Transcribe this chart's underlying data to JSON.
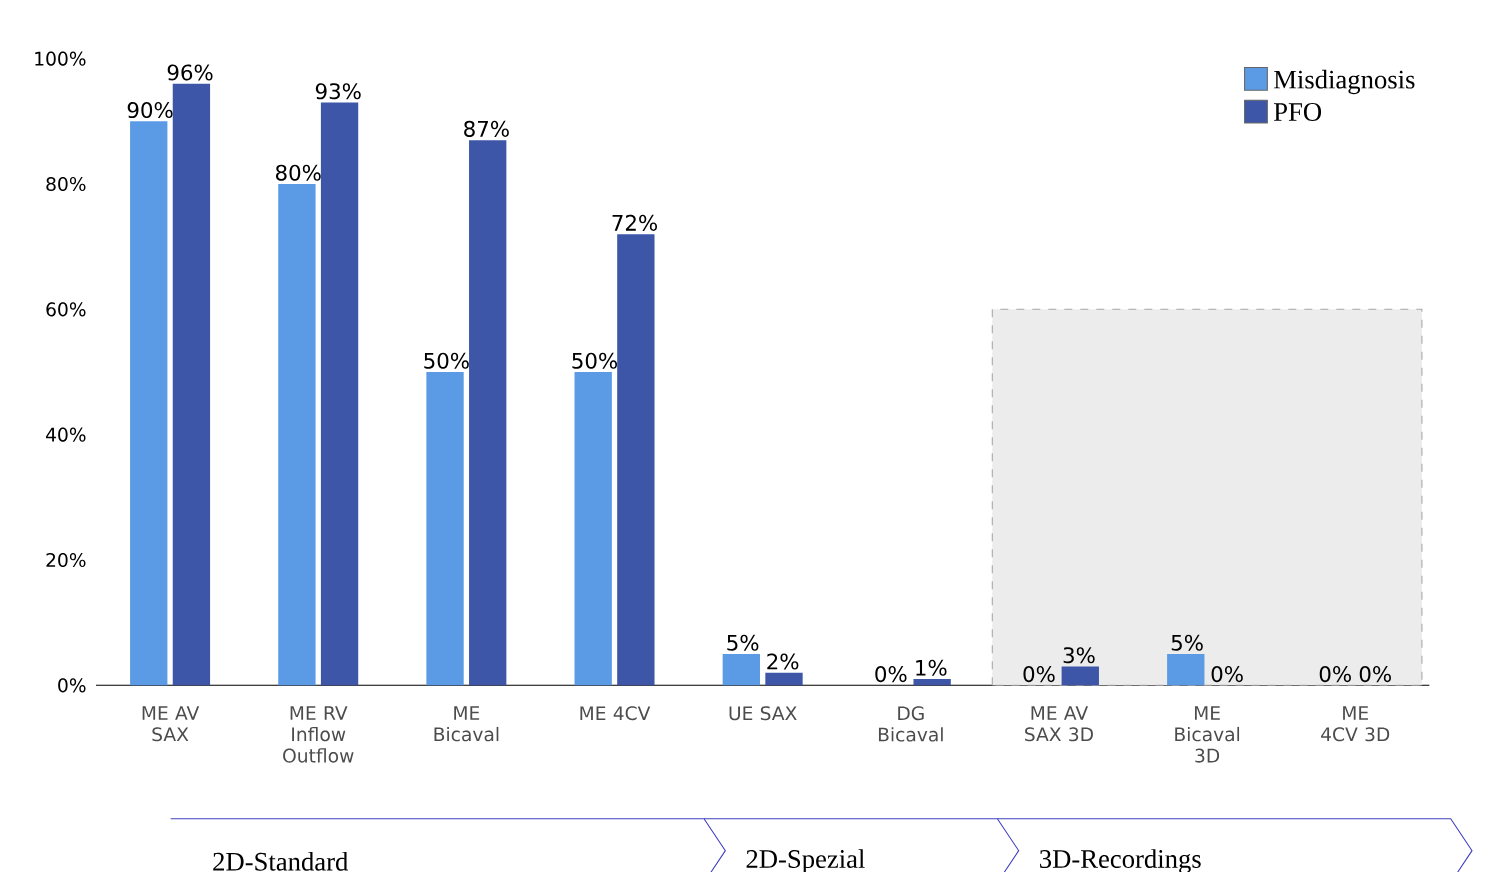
{
  "chart_data": {
    "type": "bar",
    "categories": [
      "ME AV SAX",
      "ME RV Inflow Outflow",
      "ME Bicaval",
      "ME 4CV",
      "UE SAX",
      "DG Bicaval",
      "ME AV SAX 3D",
      "ME Bicaval 3D",
      "ME 4CV 3D"
    ],
    "series": [
      {
        "name": "Misdiagnosis",
        "color": "#5b9be6",
        "values": [
          90,
          80,
          50,
          50,
          5,
          0,
          0,
          5,
          0
        ]
      },
      {
        "name": "PFO",
        "color": "#3d56a8",
        "values": [
          96,
          93,
          87,
          72,
          2,
          1,
          3,
          0,
          0
        ]
      }
    ],
    "ylim": [
      0,
      100
    ],
    "yticks": [
      {
        "value": 0,
        "label": "0%"
      },
      {
        "value": 20,
        "label": "20%"
      },
      {
        "value": 40,
        "label": "40%"
      },
      {
        "value": 60,
        "label": "60%"
      },
      {
        "value": 80,
        "label": "80%"
      },
      {
        "value": 100,
        "label": "100%"
      }
    ],
    "value_labels": [
      [
        "90%",
        "80%",
        "50%",
        "50%",
        "5%",
        "0%",
        "0%",
        "5%",
        "0%"
      ],
      [
        "96%",
        "93%",
        "87%",
        "72%",
        "2%",
        "1%",
        "3%",
        "0%",
        "0%"
      ]
    ],
    "bands": [
      {
        "axis": "x",
        "from": "ME AV SAX 3D",
        "to": "ME 4CV 3D",
        "color": "#ececec"
      }
    ],
    "annotations": [
      "2D-Standard",
      "2D-Spezial",
      "3D-Recordings"
    ],
    "legend": "top right",
    "grid": false
  }
}
